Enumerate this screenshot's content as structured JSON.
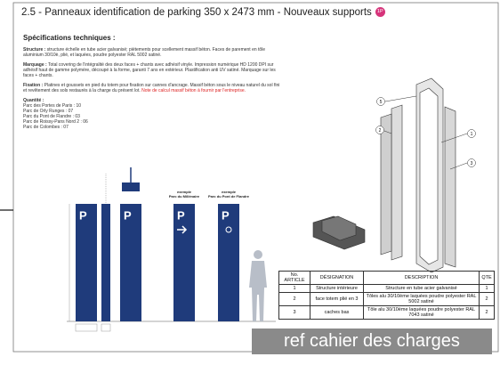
{
  "header": {
    "title": "2.5 - Panneaux identification de parking 350 x 2473 mm - Nouveaux supports",
    "badge": "1P"
  },
  "specs": {
    "heading": "Spécifications techniques :",
    "paragraphs": [
      {
        "label": "Structure :",
        "text": "structure échelle en tube acier galvanisé; piètements pour scellement massif béton. Faces de parement en tôle aluminium 30/10è, plié, et laquées, poudre polyester RAL 5002 satiné."
      },
      {
        "label": "Marquage :",
        "text": "Total covering de l'intégralité des deux faces + chants avec adhésif vinyle. Impression numérique HD 1200 DPI sur adhésif haut de gamme polymère, découpé à la forme, garanti 7 ans en extérieur. Plastification anti UV satiné. Marquage sur les faces + chants."
      },
      {
        "label": "Fixation :",
        "text": "Platines et goussets en pied du totem pour fixation sur cannes d'ancrage. Massif béton sous le niveau naturel du sol fini et revêtement des sols restaurés à la charge du présent lot.",
        "note": "Note de calcul massif béton à fournir par l'entreprise."
      }
    ],
    "quantity": {
      "label": "Quantité :",
      "items": [
        "Parc des Portes de Paris : 10",
        "Parc de Orly Runges : 07",
        "Parc du Pont de Flandre : 03",
        "Parc de Roissy-Pans Nord 2 : 06",
        "Parc de Colombes : 07"
      ]
    }
  },
  "drawing": {
    "sign_letter": "P",
    "examples": [
      {
        "label": "exemple",
        "name": "Parc du Millénaire"
      },
      {
        "label": "exemple",
        "name": "Parc du Pont de Flandre"
      }
    ],
    "callouts": [
      "5",
      "2",
      "1",
      "3"
    ]
  },
  "table": {
    "headers": [
      "No. ARTICLE",
      "DÉSIGNATION",
      "DESCRIPTION",
      "QTE"
    ],
    "rows": [
      [
        "1",
        "Structure intérieure",
        "Structure en tube acier galvanisé",
        "1"
      ],
      [
        "2",
        "face totem plié en 3",
        "Tôles alu 30/10ème laquées poudre polyester RAL 5002 satiné",
        "2"
      ],
      [
        "3",
        "caches bas",
        "Tôle alu 30/10ème laquées poudre polyester RAL 7043 satiné",
        "2"
      ]
    ]
  },
  "overlay": "ref cahier des charges"
}
